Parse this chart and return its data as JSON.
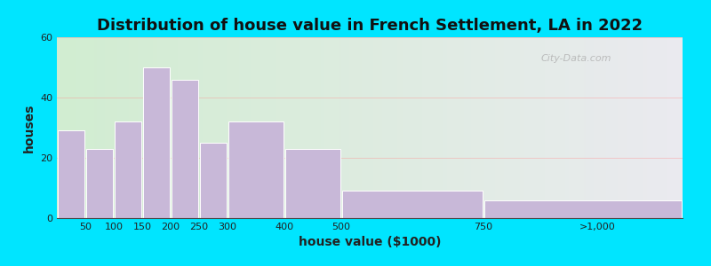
{
  "title": "Distribution of house value in French Settlement, LA in 2022",
  "xlabel": "house value ($1000)",
  "ylabel": "houses",
  "bar_labels": [
    "50",
    "100",
    "150",
    "200",
    "250",
    "300",
    "400",
    "500",
    "750",
    ">1,000"
  ],
  "bar_values": [
    29,
    23,
    32,
    50,
    46,
    25,
    32,
    23,
    9,
    6
  ],
  "bar_color": "#c8b8d8",
  "bar_edgecolor": "#ffffff",
  "ylim": [
    0,
    60
  ],
  "yticks": [
    0,
    20,
    40,
    60
  ],
  "x_edges": [
    0,
    50,
    100,
    150,
    200,
    250,
    300,
    400,
    500,
    750,
    1100
  ],
  "x_tick_pos": [
    50,
    100,
    150,
    200,
    250,
    300,
    400,
    500,
    750,
    950
  ],
  "title_fontsize": 13,
  "label_fontsize": 10,
  "tick_fontsize": 8,
  "fig_bg": "#00e5ff",
  "watermark": "City-Data.com"
}
